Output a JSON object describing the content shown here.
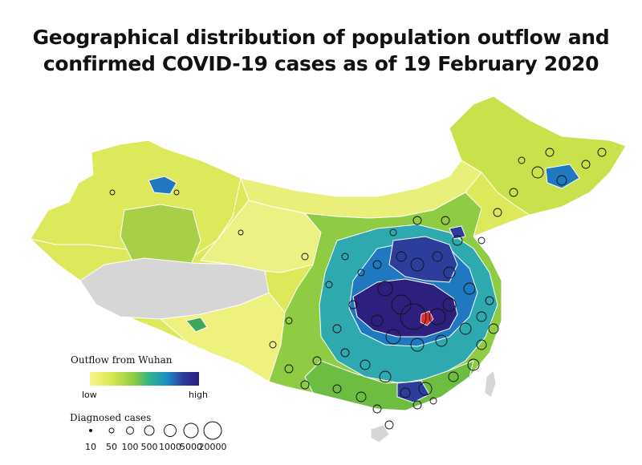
{
  "title": {
    "line1": "Geographical distribution of population outflow and",
    "line2": "confirmed COVID-19 cases as of 19 February 2020"
  },
  "legend": {
    "outflow_title": "Outflow from Wuhan",
    "outflow_low": "low",
    "outflow_high": "high",
    "outflow_colors": [
      "#f7f58a",
      "#d9e84f",
      "#8fcb43",
      "#2fb38a",
      "#1d8fc6",
      "#2d3d9c",
      "#2d1f7e"
    ],
    "cases_title": "Diagnosed cases",
    "cases_sizes": [
      "10",
      "50",
      "100",
      "500",
      "1000",
      "5000",
      "20000"
    ]
  },
  "map": {
    "no_data_color": "#d6d6d6",
    "boundary_color": "#ffffff",
    "circle_color": "#111111",
    "origin_marker_color": "#e03030"
  }
}
